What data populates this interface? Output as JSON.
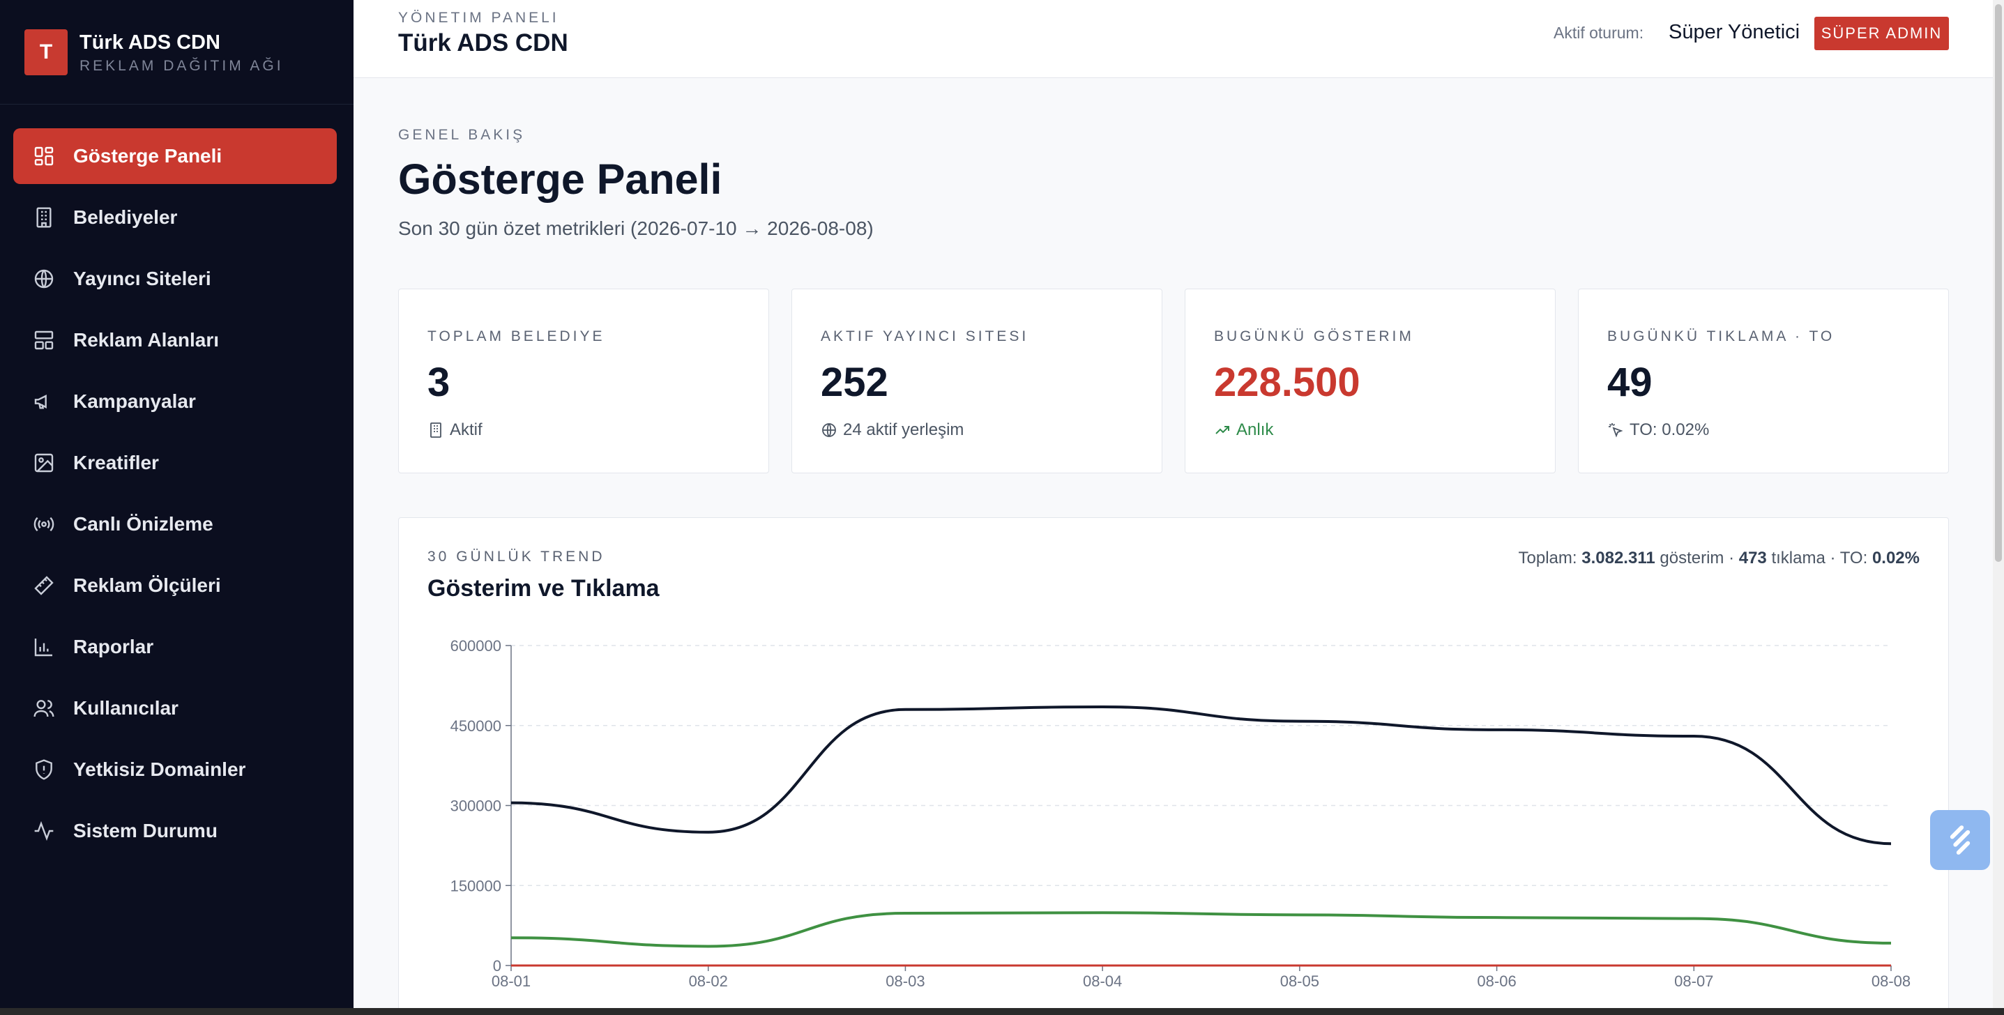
{
  "brand": {
    "logo_letter": "T",
    "title": "Türk ADS CDN",
    "subtitle": "REKLAM DAĞITIM AĞI"
  },
  "sidebar": {
    "items": [
      {
        "label": "Gösterge Paneli",
        "icon": "dashboard-icon",
        "active": true
      },
      {
        "label": "Belediyeler",
        "icon": "building-icon"
      },
      {
        "label": "Yayıncı Siteleri",
        "icon": "globe-icon"
      },
      {
        "label": "Reklam Alanları",
        "icon": "layout-icon"
      },
      {
        "label": "Kampanyalar",
        "icon": "megaphone-icon"
      },
      {
        "label": "Kreatifler",
        "icon": "image-icon"
      },
      {
        "label": "Canlı Önizleme",
        "icon": "broadcast-icon"
      },
      {
        "label": "Reklam Ölçüleri",
        "icon": "ruler-icon"
      },
      {
        "label": "Raporlar",
        "icon": "bar-chart-icon"
      },
      {
        "label": "Kullanıcılar",
        "icon": "users-icon"
      },
      {
        "label": "Yetkisiz Domainler",
        "icon": "shield-icon"
      },
      {
        "label": "Sistem Durumu",
        "icon": "activity-icon"
      }
    ]
  },
  "header": {
    "kicker": "YÖNETIM PANELI",
    "title": "Türk ADS CDN",
    "session_label": "Aktif oturum:",
    "session_user": "Süper Yönetici",
    "role_badge": "SÜPER ADMIN"
  },
  "page": {
    "kicker": "GENEL BAKIŞ",
    "title": "Gösterge Paneli",
    "subtitle": "Son 30 gün özet metrikleri (2026-07-10 → 2026-08-08)"
  },
  "cards": [
    {
      "label": "TOPLAM BELEDIYE",
      "value": "3",
      "note": "Aktif",
      "icon": "building-icon"
    },
    {
      "label": "AKTIF YAYINCI SITESI",
      "value": "252",
      "note": "24 aktif yerleşim",
      "icon": "globe-icon"
    },
    {
      "label": "BUGÜNKÜ GÖSTERIM",
      "value": "228.500",
      "note": "Anlık",
      "icon": "trending-up-icon"
    },
    {
      "label": "BUGÜNKÜ TIKLAMA · TO",
      "value": "49",
      "note": "TO: 0.02%",
      "icon": "click-icon"
    }
  ],
  "chart_section": {
    "kicker": "30 GÜNLÜK TREND",
    "title": "Gösterim ve Tıklama",
    "summary_prefix": "Toplam:",
    "summary_impressions": "3.082.311",
    "summary_impressions_word": "gösterim ·",
    "summary_clicks": "473",
    "summary_clicks_word": "tıklama · TO:",
    "summary_ctr": "0.02%"
  },
  "chart_data": {
    "type": "line",
    "categories": [
      "08-01",
      "08-02",
      "08-03",
      "08-04",
      "08-05",
      "08-06",
      "08-07",
      "08-08"
    ],
    "series": [
      {
        "color": "#0f172a",
        "values": [
          305000,
          250000,
          480000,
          485000,
          458000,
          442000,
          430000,
          228500
        ]
      },
      {
        "color": "#3f9142",
        "values": [
          52000,
          36000,
          98000,
          99000,
          95000,
          90000,
          88000,
          42000
        ]
      },
      {
        "color": "#c9392f",
        "values": [
          70,
          55,
          65,
          70,
          68,
          66,
          64,
          49
        ]
      }
    ],
    "yticks": [
      "0",
      "150000",
      "300000",
      "450000",
      "600000"
    ],
    "ylim": [
      0,
      600000
    ],
    "grid": true
  },
  "colors": {
    "accent": "#c9392f",
    "sidebar_bg": "#0b0e1f",
    "positive": "#2e8b4a"
  }
}
